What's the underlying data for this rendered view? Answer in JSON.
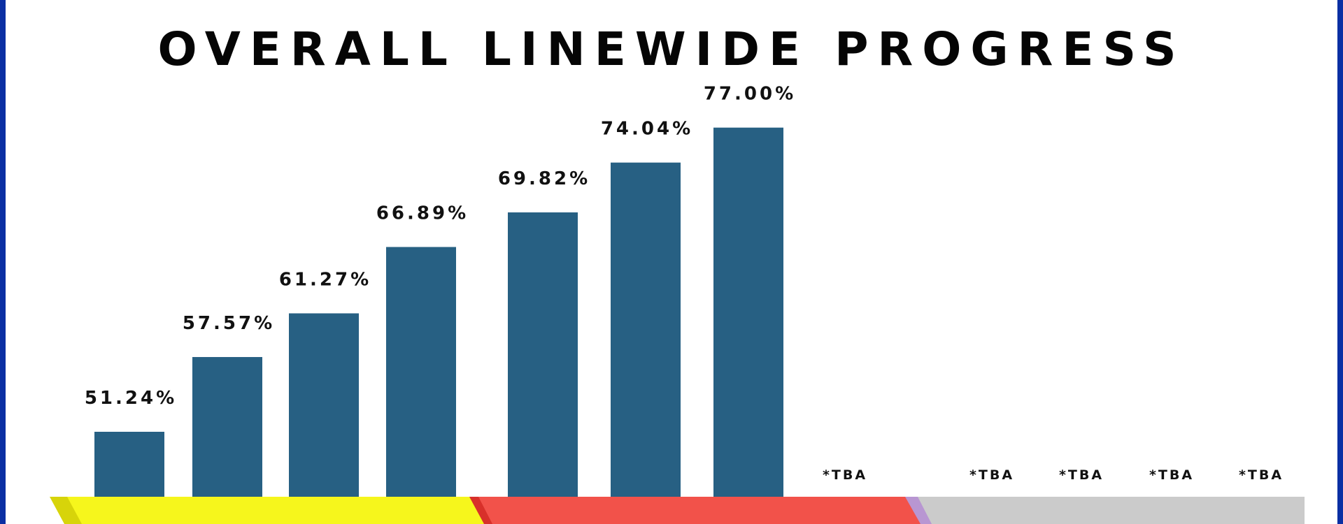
{
  "title": "OVERALL LINEWIDE PROGRESS",
  "colors": {
    "border": "#0b2fa3",
    "bar": "#276083",
    "band_yellow": "#f6f61c",
    "band_yellow_edge": "#d7d40a",
    "band_red": "#f2524a",
    "band_red_edge": "#d8302a",
    "band_purple": "#b896d2",
    "band_gray": "#cbcbcb"
  },
  "chart_data": {
    "type": "bar",
    "categories": [
      "",
      "",
      "",
      "",
      "",
      "",
      "",
      "",
      "",
      "",
      "",
      ""
    ],
    "values": [
      51.24,
      57.57,
      61.27,
      66.89,
      69.82,
      74.04,
      77.0,
      null,
      null,
      null,
      null,
      null
    ],
    "data_labels": [
      "51.24%",
      "57.57%",
      "61.27%",
      "66.89%",
      "69.82%",
      "74.04%",
      "77.00%",
      "*TBA",
      "*TBA",
      "*TBA",
      "*TBA",
      "*TBA"
    ],
    "title": "OVERALL LINEWIDE PROGRESS",
    "xlabel": "",
    "ylabel": "",
    "ylim": [
      0,
      100
    ],
    "unit": "%",
    "grid": false,
    "legend": "none"
  }
}
